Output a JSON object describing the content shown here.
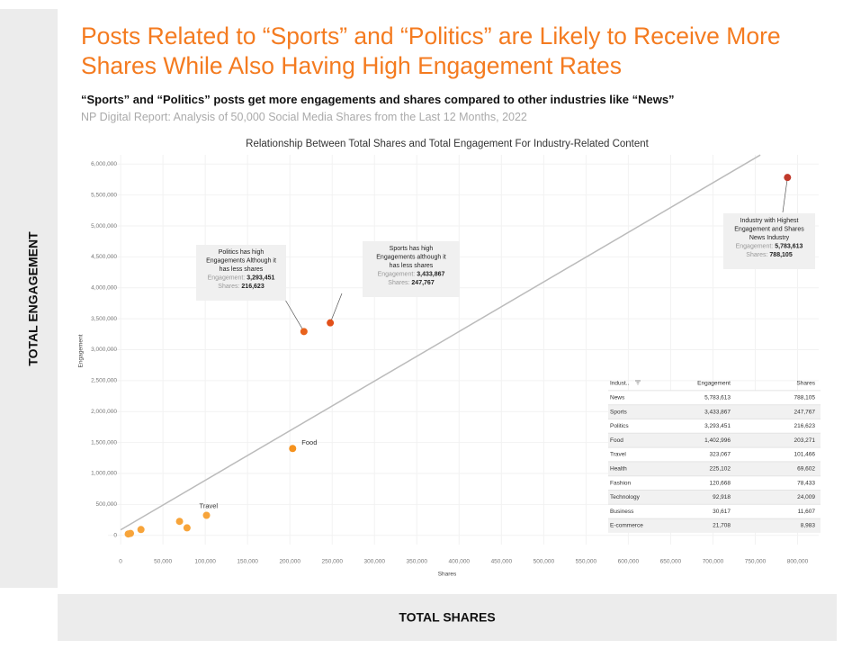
{
  "header": {
    "title": "Posts Related to “Sports” and “Politics” are Likely to Receive More Shares While Also Having High Engagement Rates",
    "subtitle": "“Sports” and “Politics” posts get more engagements and shares compared to other industries like “News”",
    "source": "NP Digital Report: Analysis of 50,000 Social Media Shares from the Last 12 Months, 2022"
  },
  "outer_y_label": "TOTAL ENGAGEMENT",
  "outer_x_label": "TOTAL SHARES",
  "chart_data": {
    "type": "scatter",
    "title": "Relationship Between Total Shares and Total Engagement For Industry-Related Content",
    "x_label": "Shares",
    "y_label": "Engagement",
    "x": [
      788105,
      247767,
      216623,
      203271,
      101466,
      69602,
      78433,
      24009,
      11607,
      8983
    ],
    "values": [
      5783613,
      3433867,
      3293451,
      1402996,
      323067,
      225102,
      120668,
      92918,
      30617,
      21708
    ],
    "colors": [
      "#c0392b",
      "#e2501a",
      "#e8621c",
      "#f5921e",
      "#f7a43a",
      "#f7a43a",
      "#f7a43a",
      "#f7a43a",
      "#f7a43a",
      "#f7a43a"
    ],
    "point_labels": [
      null,
      null,
      null,
      "Food",
      "Travel",
      null,
      null,
      null,
      null,
      null
    ],
    "xlim": [
      -15000,
      825000
    ],
    "ylim": [
      -150000,
      6150000
    ],
    "xticks": [
      0,
      {
        "value": 50000,
        "label": "50,000"
      },
      {
        "value": 100000,
        "label": "100,000"
      },
      {
        "value": 150000,
        "label": "150,000"
      },
      {
        "value": 200000,
        "label": "200,000"
      },
      {
        "value": 250000,
        "label": "250,000"
      },
      {
        "value": 300000,
        "label": "300,000"
      },
      {
        "value": 350000,
        "label": "350,000"
      },
      {
        "value": 400000,
        "label": "400,000"
      },
      {
        "value": 450000,
        "label": "450,000"
      },
      {
        "value": 500000,
        "label": "500,000"
      },
      {
        "value": 550000,
        "label": "550,000"
      },
      {
        "value": 600000,
        "label": "600,000"
      },
      {
        "value": 650000,
        "label": "650,000"
      },
      {
        "value": 700000,
        "label": "700,000"
      },
      {
        "value": 750000,
        "label": "750,000"
      },
      {
        "value": 800000,
        "label": "800,000"
      }
    ],
    "yticks": [
      0,
      {
        "value": 500000,
        "label": "500,000"
      },
      {
        "value": 1000000,
        "label": "1,000,000"
      },
      {
        "value": 1500000,
        "label": "1,500,000"
      },
      {
        "value": 2000000,
        "label": "2,000,000"
      },
      {
        "value": 2500000,
        "label": "2,500,000"
      },
      {
        "value": 3000000,
        "label": "3,000,000"
      },
      {
        "value": 3500000,
        "label": "3,500,000"
      },
      {
        "value": 4000000,
        "label": "4,000,000"
      },
      {
        "value": 4500000,
        "label": "4,500,000"
      },
      {
        "value": 5000000,
        "label": "5,000,000"
      },
      {
        "value": 5500000,
        "label": "5,500,000"
      },
      {
        "value": 6000000,
        "label": "6,000,000"
      }
    ],
    "grid": true,
    "trend_line": {
      "x": [
        0,
        756000
      ],
      "y": [
        88000,
        6147000
      ],
      "color": "#bbbbbb"
    },
    "annotations": [
      {
        "lines": [
          "Politics has high",
          "Engagements Although it",
          "has less shares"
        ],
        "engagement_label": "Engagement:",
        "engagement": "3,293,451",
        "shares_label": "Shares:",
        "shares": "216,623"
      },
      {
        "lines": [
          "Sports has high",
          "Engagements although it",
          "has less shares"
        ],
        "engagement_label": "Engagement:",
        "engagement": "3,433,867",
        "shares_label": "Shares:",
        "shares": "247,767"
      },
      {
        "lines": [
          "Industry with Highest",
          "Engagement and Shares",
          "News Industry"
        ],
        "engagement_label": "Engagement:",
        "engagement": "5,783,613",
        "shares_label": "Shares:",
        "shares": "788,105"
      }
    ],
    "table": {
      "columns": [
        "Indust..",
        "Engagement",
        "Shares"
      ],
      "rows": [
        [
          "News",
          "5,783,613",
          "788,105"
        ],
        [
          "Sports",
          "3,433,867",
          "247,767"
        ],
        [
          "Politics",
          "3,293,451",
          "216,623"
        ],
        [
          "Food",
          "1,402,996",
          "203,271"
        ],
        [
          "Travel",
          "323,067",
          "101,466"
        ],
        [
          "Health",
          "225,102",
          "69,602"
        ],
        [
          "Fashion",
          "120,668",
          "78,433"
        ],
        [
          "Technology",
          "92,918",
          "24,009"
        ],
        [
          "Business",
          "30,617",
          "11,607"
        ],
        [
          "E-commerce",
          "21,708",
          "8,983"
        ]
      ]
    }
  }
}
